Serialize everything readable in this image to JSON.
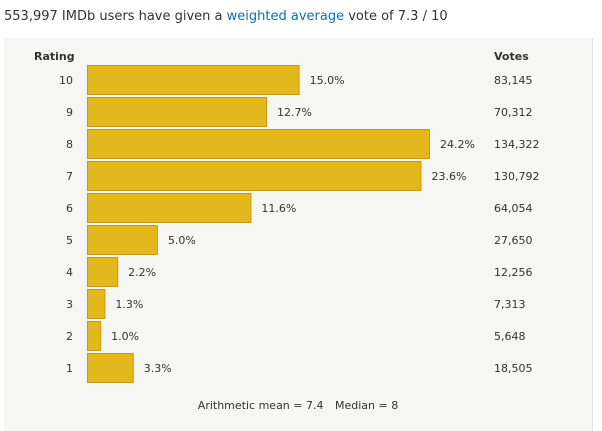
{
  "summary": {
    "prefix": "553,997 IMDb users have given a ",
    "link": "weighted average",
    "suffix": " vote of 7.3 / 10"
  },
  "headers": {
    "rating": "Rating",
    "votes": "Votes"
  },
  "stats": {
    "mean": "Arithmetic mean = 7.4",
    "median": "Median = 8"
  },
  "colors": {
    "bar": "#e3b81c",
    "bar_border": "#c99a0f",
    "panel": "#f6f6f5",
    "link": "#136cb2"
  },
  "chart_data": {
    "type": "bar",
    "orientation": "horizontal",
    "categories": [
      "10",
      "9",
      "8",
      "7",
      "6",
      "5",
      "4",
      "3",
      "2",
      "1"
    ],
    "values": [
      15.0,
      12.7,
      24.2,
      23.6,
      11.6,
      5.0,
      2.2,
      1.3,
      1.0,
      3.3
    ],
    "value_labels": [
      "15.0%",
      "12.7%",
      "24.2%",
      "23.6%",
      "11.6%",
      "5.0%",
      "2.2%",
      "1.3%",
      "1.0%",
      "3.3%"
    ],
    "votes": [
      "83,145",
      "70,312",
      "134,322",
      "130,792",
      "64,054",
      "27,650",
      "12,256",
      "7,313",
      "5,648",
      "18,505"
    ],
    "xlim": [
      0,
      24.2
    ],
    "ylabel": "Rating",
    "grid": false,
    "legend": "none"
  }
}
